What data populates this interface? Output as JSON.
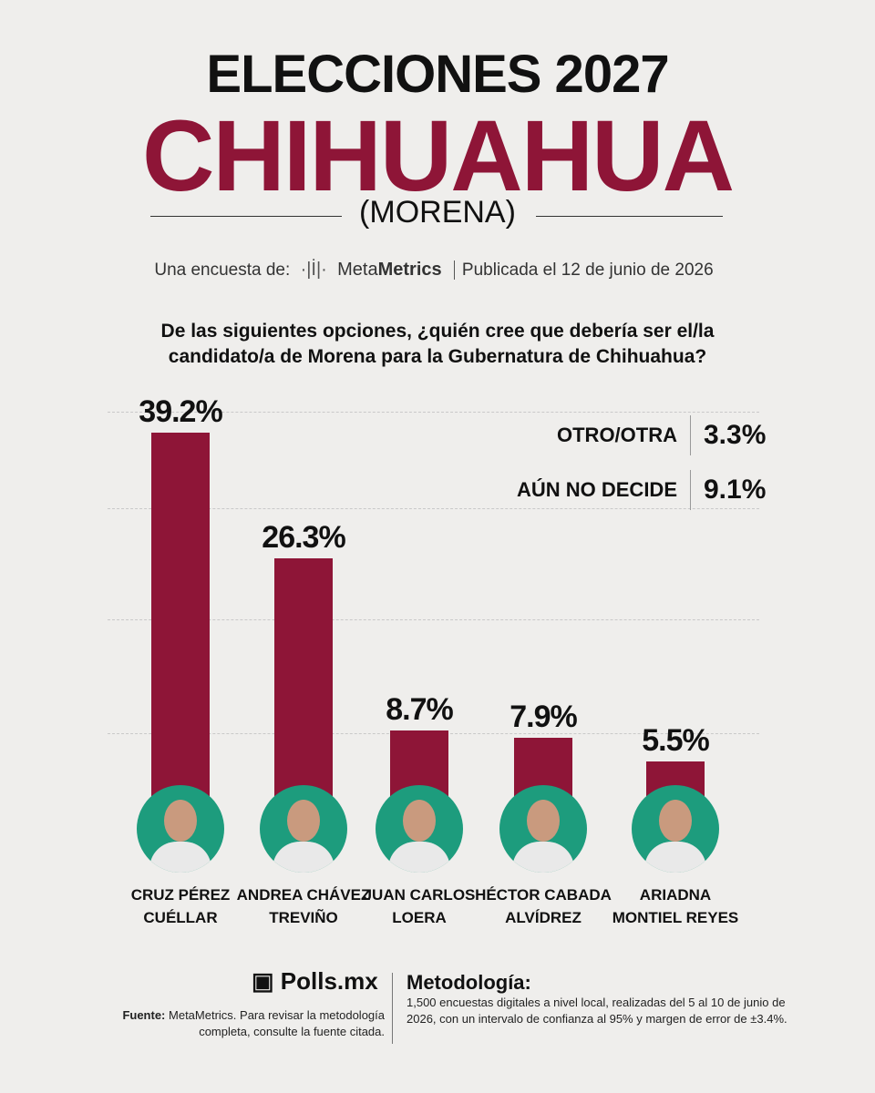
{
  "header": {
    "title": "ELECCIONES 2027",
    "state": "CHIHUAHUA",
    "party": "(MORENA)",
    "survey_by": "Una encuesta de:",
    "pollster": [
      "Meta",
      "Metrics"
    ],
    "published": "Publicada el 12 de junio de 2026"
  },
  "chart_data": {
    "type": "bar",
    "title": "De las siguientes opciones, ¿quién cree que debería ser el/la candidato/a de Morena para la Gubernatura de Chihuahua?",
    "categories": [
      "CRUZ PÉREZ CUÉLLAR",
      "ANDREA CHÁVEZ TREVIÑO",
      "JUAN CARLOS LOERA",
      "HÉCTOR CABADA ALVÍDREZ",
      "ARIADNA MONTIEL REYES"
    ],
    "values": [
      39.2,
      26.3,
      8.7,
      7.9,
      5.5
    ],
    "value_labels": [
      "39.2%",
      "26.3%",
      "8.7%",
      "7.9%",
      "5.5%"
    ],
    "color": "#8e1537",
    "others": [
      {
        "label": "OTRO/OTRA",
        "value": 3.3,
        "value_label": "3.3%"
      },
      {
        "label": "AÚN NO DECIDE",
        "value": 9.1,
        "value_label": "9.1%"
      }
    ]
  },
  "footer": {
    "brand": "Polls.mx",
    "source_label": "Fuente:",
    "source_text": "MetaMetrics. Para revisar la metodología completa, consulte la fuente citada.",
    "method_title": "Metodología:",
    "method_text": "1,500 encuestas digitales a nivel local, realizadas del 5 al 10 de junio de 2026, con un intervalo de confianza al 95% y margen de error de ±3.4%."
  }
}
